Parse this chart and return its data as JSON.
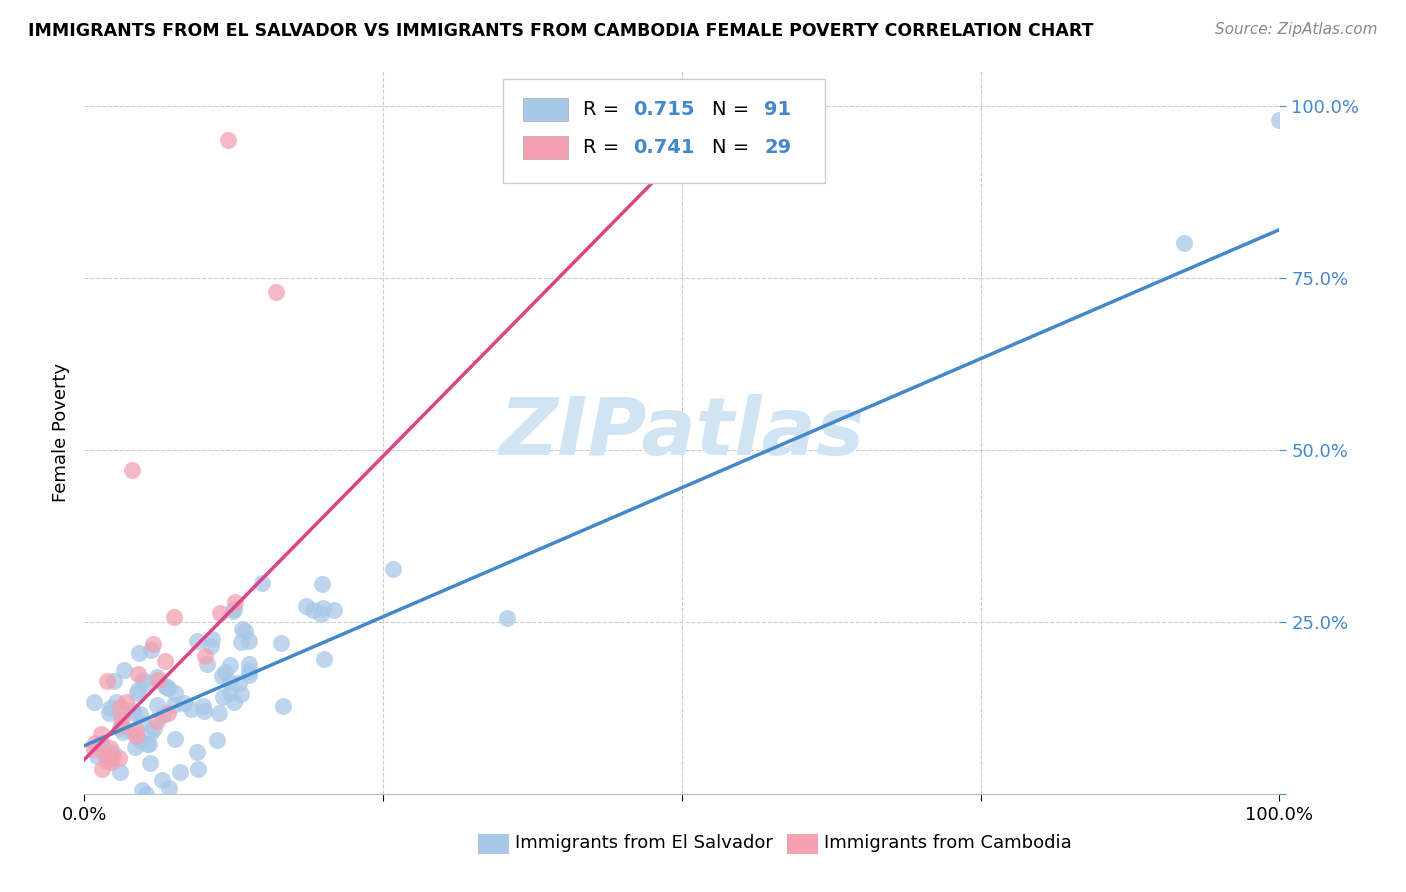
{
  "title": "IMMIGRANTS FROM EL SALVADOR VS IMMIGRANTS FROM CAMBODIA FEMALE POVERTY CORRELATION CHART",
  "source": "Source: ZipAtlas.com",
  "ylabel": "Female Poverty",
  "ytick_labels": [
    "",
    "25.0%",
    "50.0%",
    "75.0%",
    "100.0%"
  ],
  "ytick_positions": [
    0.0,
    0.25,
    0.5,
    0.75,
    1.0
  ],
  "xlim": [
    0.0,
    1.0
  ],
  "ylim": [
    0.0,
    1.05
  ],
  "series1_label": "Immigrants from El Salvador",
  "series2_label": "Immigrants from Cambodia",
  "color_blue": "#a8c8e8",
  "color_pink": "#f4a0b0",
  "color_line_blue": "#4488cc",
  "color_line_pink": "#dd4488",
  "color_value": "#4488cc",
  "watermark": "ZIPatlas",
  "watermark_color": "#d0e4f4",
  "blue_line_x0": 0.0,
  "blue_line_y0": 0.07,
  "blue_line_x1": 1.0,
  "blue_line_y1": 0.82,
  "pink_line_x0": 0.0,
  "pink_line_y0": 0.05,
  "pink_line_x1": 0.55,
  "pink_line_y1": 1.02,
  "grid_color": "#cccccc",
  "bg_color": "#ffffff",
  "legend_box_color": "#cccccc"
}
